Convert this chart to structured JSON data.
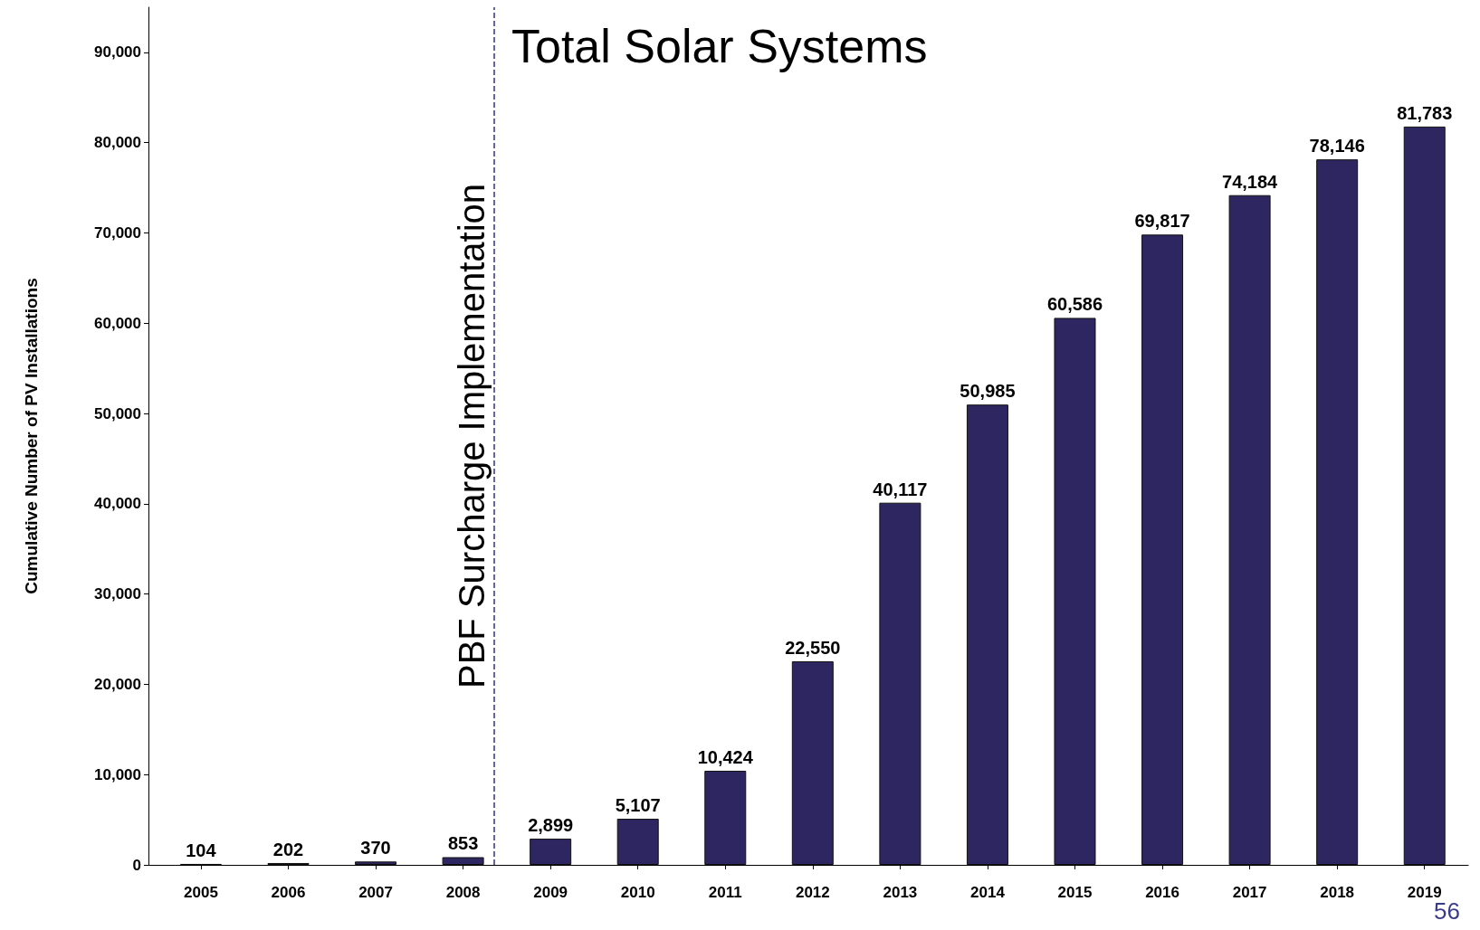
{
  "chart_data": {
    "type": "bar",
    "title": "Total Solar Systems",
    "ylabel": "Cumulative Number of PV Installations",
    "x": [
      2005,
      2006,
      2007,
      2008,
      2009,
      2010,
      2011,
      2012,
      2013,
      2014,
      2015,
      2016,
      2017,
      2018,
      2019
    ],
    "values": [
      104,
      202,
      370,
      853,
      2899,
      5107,
      10424,
      22550,
      40117,
      50985,
      60586,
      69817,
      74184,
      78146,
      81783
    ],
    "color": "#2e2660",
    "value_labels": [
      "104",
      "202",
      "370",
      "853",
      "2,899",
      "5,107",
      "10,424",
      "22,550",
      "40,117",
      "50,985",
      "60,586",
      "69,817",
      "74,184",
      "78,146",
      "81,783"
    ],
    "xlim": [
      2004.4,
      2019.5
    ],
    "xticks": [
      2005,
      2006,
      2007,
      2008,
      2009,
      2010,
      2011,
      2012,
      2013,
      2014,
      2015,
      2016,
      2017,
      2018,
      2019
    ],
    "ylim": [
      0,
      95000
    ],
    "yticks": [
      {
        "value": 0,
        "label": "0"
      },
      {
        "value": 10000,
        "label": "10,000"
      },
      {
        "value": 20000,
        "label": "20,000"
      },
      {
        "value": 30000,
        "label": "30,000"
      },
      {
        "value": 40000,
        "label": "40,000"
      },
      {
        "value": 50000,
        "label": "50,000"
      },
      {
        "value": 60000,
        "label": "60,000"
      },
      {
        "value": 70000,
        "label": "70,000"
      },
      {
        "value": 80000,
        "label": "80,000"
      },
      {
        "value": 90000,
        "label": "90,000"
      }
    ],
    "grid": false,
    "ref_lines": [
      {
        "axis": "x",
        "value": 2008.35,
        "label": "PBF Surcharge Implementation",
        "color": "#333388",
        "line_style": "dashed"
      }
    ],
    "annotations": [
      "56"
    ]
  }
}
